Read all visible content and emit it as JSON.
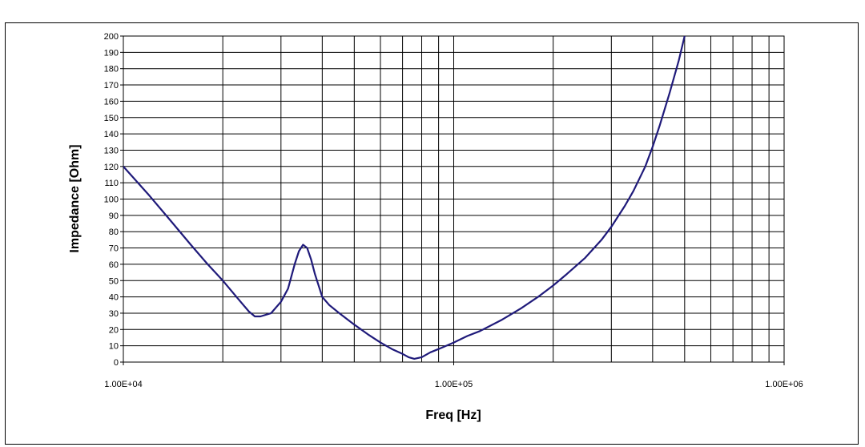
{
  "chart_data": {
    "type": "line",
    "title": "",
    "xlabel": "Freq [Hz]",
    "ylabel": "Impedance [Ohm]",
    "x_scale": "log",
    "xlim": [
      10000,
      1000000
    ],
    "ylim": [
      0,
      200
    ],
    "y_ticks": [
      "0",
      "10",
      "20",
      "30",
      "40",
      "50",
      "60",
      "70",
      "80",
      "90",
      "100",
      "110",
      "120",
      "130",
      "140",
      "150",
      "160",
      "170",
      "180",
      "190",
      "200"
    ],
    "x_tick_labels": [
      "1.00E+04",
      "1.00E+05",
      "1.00E+06"
    ],
    "grid": true,
    "legend": "none",
    "line_color": "#1f1a7a",
    "series": [
      {
        "x": [
          10000,
          12000,
          14000,
          16000,
          18000,
          20000,
          22000,
          24000,
          25000,
          26000,
          28000,
          30000,
          31500,
          33000,
          34000,
          35000,
          36000,
          37000,
          38000,
          39000,
          40000,
          42000,
          45000,
          50000,
          55000,
          60000,
          65000,
          70000,
          73000,
          76000,
          80000,
          85000,
          90000,
          100000,
          110000,
          120000,
          140000,
          160000,
          180000,
          200000,
          220000,
          250000,
          280000,
          300000,
          330000,
          350000,
          380000,
          400000,
          420000,
          450000,
          480000,
          500000,
          510000
        ],
        "values": [
          120,
          102,
          86,
          72,
          60,
          50,
          40,
          31,
          28,
          28,
          30,
          37,
          45,
          60,
          68,
          72,
          70,
          63,
          54,
          47,
          40,
          35,
          30,
          23,
          17,
          12,
          8,
          5,
          3,
          2,
          3,
          6,
          8,
          12,
          16,
          19,
          26,
          33,
          40,
          47,
          54,
          64,
          75,
          83,
          96,
          105,
          120,
          132,
          145,
          165,
          185,
          200,
          205
        ]
      }
    ]
  }
}
